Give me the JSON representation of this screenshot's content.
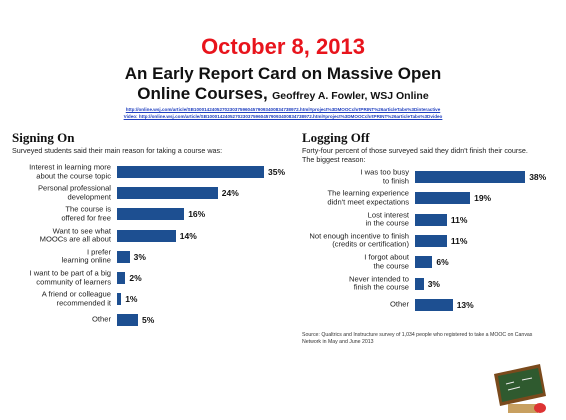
{
  "slide": {
    "title": "October 8, 2013",
    "subtitle": "An Early Report Card on Massive Open",
    "subtitle_2": "Online Courses,",
    "author": "Geoffrey A. Fowler, WSJ Online",
    "link_1": "http://online.wsj.com/article/SB10001424052702303759604579093400834738972.html#project%3DMOOCchrtPRINT%26articleTabs%3Dinteractive",
    "link_2": "Video: http://online.wsj.com/article/SB10001424052702303759604579093400834738972.html#project%3DMOOCchrtPRINT%26articleTabs%3Dvideo"
  },
  "chart_data": [
    {
      "type": "bar",
      "orientation": "horizontal",
      "title": "Signing On",
      "subtitle": "Surveyed students said their main reason for taking a course was:",
      "categories": [
        "Interest in learning more\nabout the course topic",
        "Personal professional\ndevelopment",
        "The course is\noffered for free",
        "Want to see what\nMOOCs are all about",
        "I prefer\nlearning online",
        "I want to be part of a big\ncommunity of learners",
        "A friend or colleague\nrecommended it",
        "Other"
      ],
      "values": [
        35,
        24,
        16,
        14,
        3,
        2,
        1,
        5
      ],
      "value_labels": [
        "35%",
        "24%",
        "16%",
        "14%",
        "3%",
        "2%",
        "1%",
        "5%"
      ],
      "color": "#1d4f91"
    },
    {
      "type": "bar",
      "orientation": "horizontal",
      "title": "Logging Off",
      "subtitle": "Forty-four percent of those surveyed said they didn't finish their course.\nThe biggest reason:",
      "categories": [
        "I was too busy\nto finish",
        "The learning experience\ndidn't meet expectations",
        "Lost interest\nin the course",
        "Not enough incentive to finish\n(credits or certification)",
        "I forgot about\nthe course",
        "Never intended to\nfinish the course",
        "Other"
      ],
      "values": [
        38,
        19,
        11,
        11,
        6,
        3,
        13
      ],
      "value_labels": [
        "38%",
        "19%",
        "11%",
        "11%",
        "6%",
        "3%",
        "13%"
      ],
      "color": "#1d4f91",
      "source": "Source: Qualtrics and Instructure survey of 1,034 people who registered to take a MOOC on Canvas Network in May and June 2013"
    }
  ]
}
